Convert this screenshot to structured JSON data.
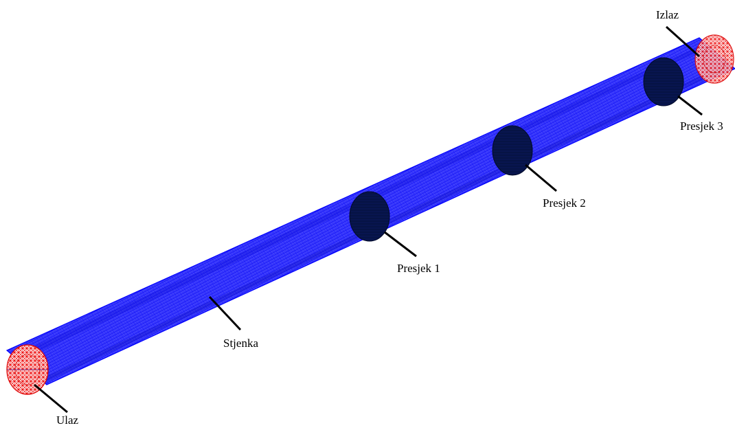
{
  "labels": {
    "inlet": "Ulaz",
    "outlet": "Izlaz",
    "wall": "Stjenka",
    "section1": "Presjek 1",
    "section2": "Presjek 2",
    "section3": "Presjek 3"
  },
  "colors": {
    "wall_mesh": "#0000ff",
    "wall_fill": "#3c3cff",
    "inlet_outlet_mesh": "#ff0000",
    "section_fill": "#061447",
    "leader_line": "#000000",
    "background": "#ffffff"
  }
}
